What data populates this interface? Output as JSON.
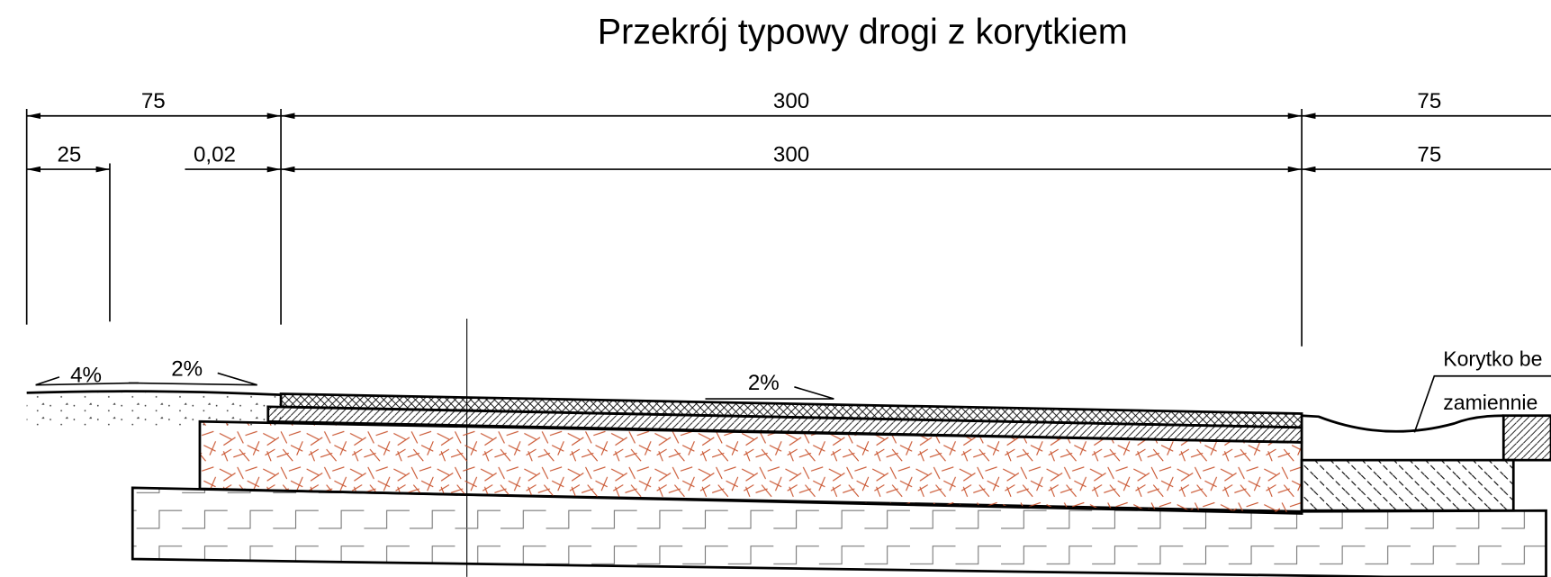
{
  "title": "Przekrój typowy drogi z korytkiem",
  "dimensions": {
    "top_row": [
      "75",
      "300",
      "75"
    ],
    "bottom_row": [
      "25",
      "0,02",
      "300",
      "75"
    ]
  },
  "slopes": [
    "4%",
    "2%",
    "2%"
  ],
  "labels": [
    "Korytko be",
    "zamiennie"
  ]
}
